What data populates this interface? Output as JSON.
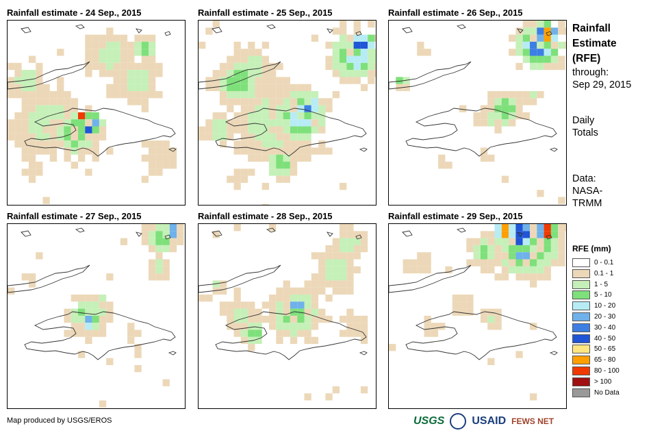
{
  "panels": [
    {
      "title": "Rainfall estimate - 24 Sep., 2015"
    },
    {
      "title": "Rainfall estimate - 25 Sep., 2015"
    },
    {
      "title": "Rainfall estimate - 26 Sep., 2015"
    },
    {
      "title": "Rainfall estimate - 27 Sep., 2015"
    },
    {
      "title": "Rainfall estimate - 28 Sep., 2015"
    },
    {
      "title": "Rainfall estimate - 29 Sep., 2015"
    }
  ],
  "side": {
    "title_1": "Rainfall",
    "title_2": "Estimate",
    "title_3": "(RFE)",
    "through_label": "through:",
    "through_date": "Sep 29, 2015",
    "period_1": "Daily",
    "period_2": "Totals",
    "data_1": "Data:",
    "data_2": "NASA-",
    "data_3": "TRMM"
  },
  "legend": {
    "title": "RFE (mm)",
    "items": [
      {
        "label": "0 - 0.1",
        "color": "#ffffff"
      },
      {
        "label": "0.1 - 1",
        "color": "#ecd8b8"
      },
      {
        "label": "1 - 5",
        "color": "#c5f0b8"
      },
      {
        "label": "5 - 10",
        "color": "#7ee07a"
      },
      {
        "label": "10 - 20",
        "color": "#b7ecf5"
      },
      {
        "label": "20 - 30",
        "color": "#6fb1ea"
      },
      {
        "label": "30 - 40",
        "color": "#3c7fe3"
      },
      {
        "label": "40 - 50",
        "color": "#1f55d6"
      },
      {
        "label": "50 - 65",
        "color": "#ffe680"
      },
      {
        "label": "65 - 80",
        "color": "#ffa000"
      },
      {
        "label": "80 - 100",
        "color": "#f03a00"
      },
      {
        "label": "> 100",
        "color": "#a01010"
      },
      {
        "label": "No Data",
        "color": "#999999"
      }
    ]
  },
  "footer": "Map produced by USGS/EROS",
  "logos": {
    "usgs": "USGS",
    "usaid": "USAID",
    "fews": "FEWS NET"
  }
}
